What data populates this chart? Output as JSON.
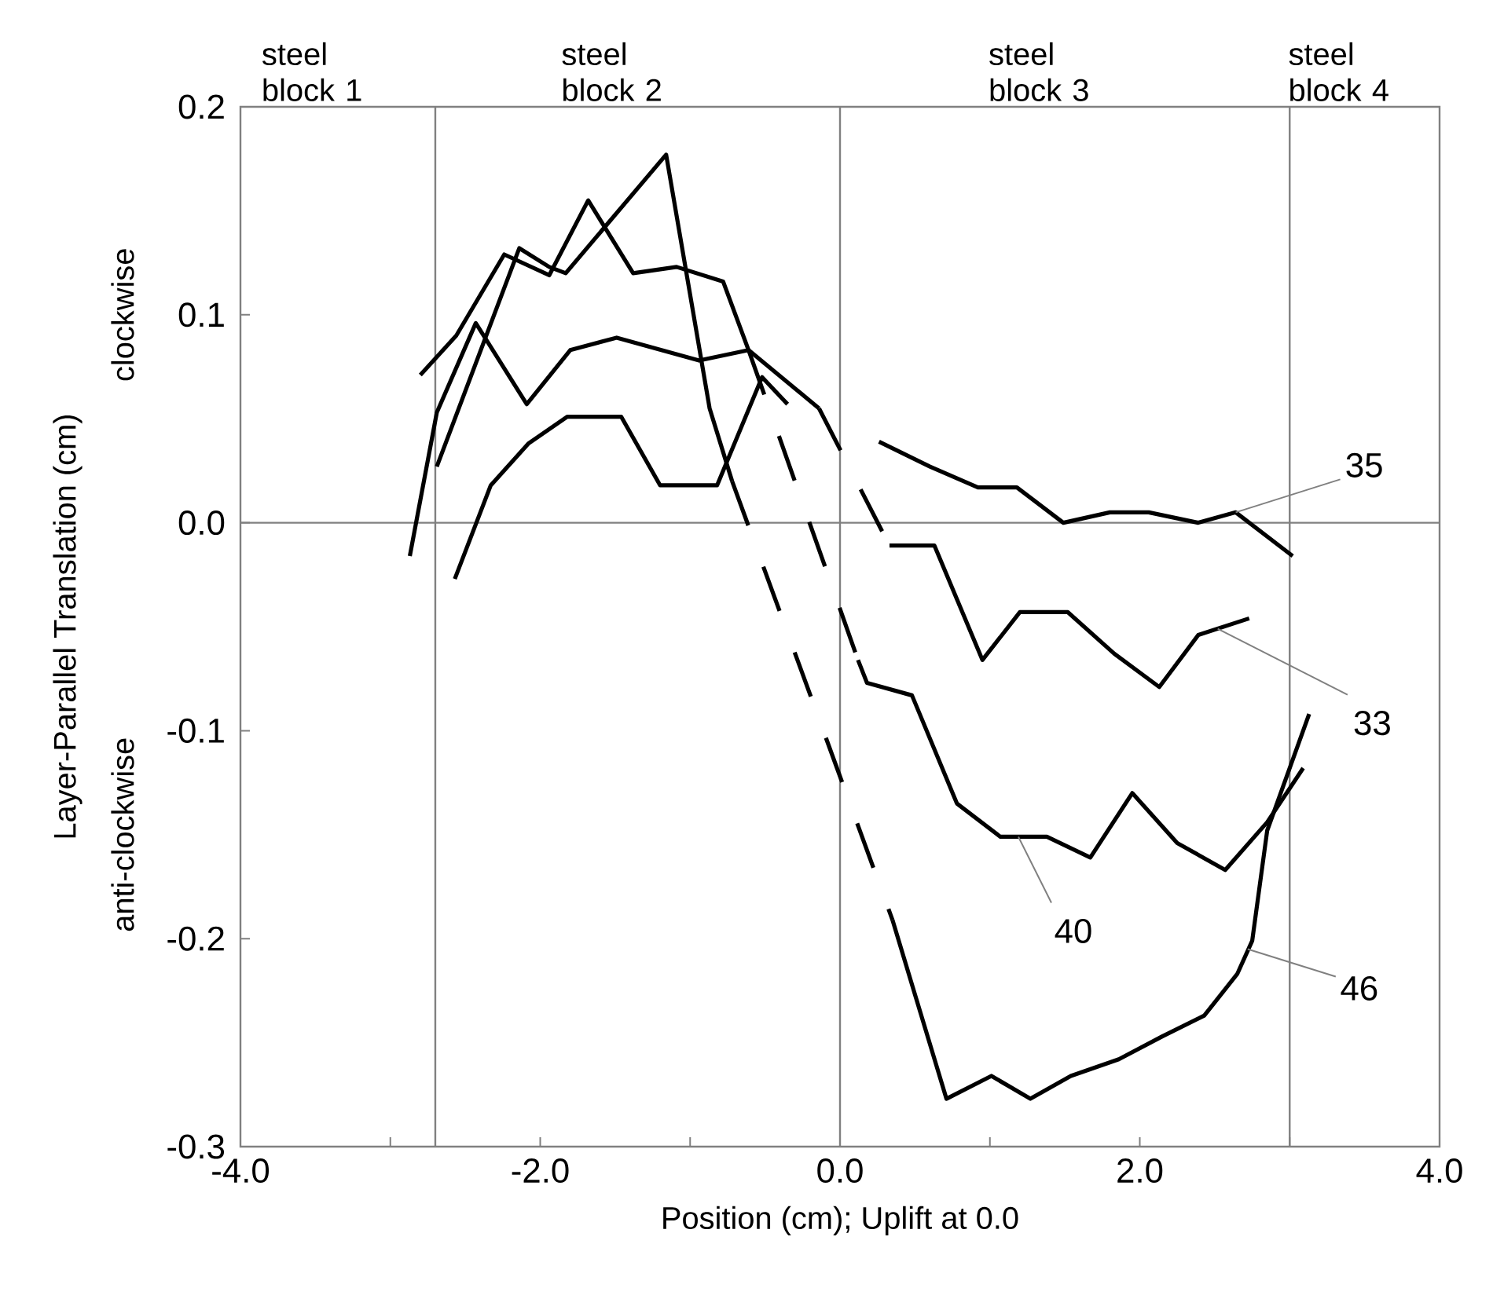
{
  "chart_data": {
    "type": "line",
    "xlabel": "Position (cm); Uplift at 0.0",
    "ylabel": "Layer-Parallel Translation (cm)",
    "xlim": [
      -4,
      4
    ],
    "ylim": [
      -0.3,
      0.2
    ],
    "xticks": [
      {
        "value": -4,
        "label": "-4.0"
      },
      {
        "value": -3,
        "label": null
      },
      {
        "value": -2,
        "label": "-2.0"
      },
      {
        "value": -1,
        "label": null
      },
      {
        "value": 0,
        "label": "0.0"
      },
      {
        "value": 1,
        "label": null
      },
      {
        "value": 2,
        "label": "2.0"
      },
      {
        "value": 3,
        "label": null
      },
      {
        "value": 4,
        "label": "4.0"
      }
    ],
    "yticks": [
      -0.3,
      -0.2,
      -0.1,
      {
        "value": 0,
        "label": "0.0"
      },
      0.1,
      0.2
    ],
    "grid": false,
    "marker": "none",
    "ref_lines": [
      {
        "axis": "x",
        "value": -2.7
      },
      {
        "axis": "x",
        "value": 0
      },
      {
        "axis": "x",
        "value": 3.0
      },
      {
        "axis": "y",
        "value": 0
      }
    ],
    "annotations": [
      "steel block 1",
      "steel block 2",
      "steel block 3",
      "steel block 4",
      "clockwise",
      "anti-clockwise",
      {
        "text": "35",
        "x": 2.64,
        "y": 0.005
      },
      {
        "text": "33",
        "x": 2.52,
        "y": -0.051
      },
      {
        "text": "40",
        "x": 1.19,
        "y": -0.151
      },
      {
        "text": "46",
        "x": 2.72,
        "y": -0.205
      }
    ],
    "series": [
      {
        "color": "#000000",
        "line_style": "solid",
        "x": [
          -2.8,
          -2.56,
          -2.24,
          -1.94,
          -1.68,
          -1.38,
          -1.09,
          -0.78,
          -0.61
        ],
        "values": [
          0.071,
          0.09,
          0.129,
          0.119,
          0.155,
          0.12,
          0.123,
          0.116,
          0.083
        ]
      },
      {
        "color": "#000000",
        "line_style": "dashed",
        "x": [
          -0.61,
          0.12
        ],
        "values": [
          0.083,
          -0.066
        ]
      },
      {
        "color": "#000000",
        "line_style": "solid",
        "x": [
          0.12,
          0.18,
          0.48,
          0.78,
          1.07,
          1.38,
          1.67,
          1.95,
          2.25,
          2.57,
          2.85,
          3.09
        ],
        "values": [
          -0.066,
          -0.077,
          -0.083,
          -0.135,
          -0.151,
          -0.151,
          -0.161,
          -0.13,
          -0.154,
          -0.167,
          -0.144,
          -0.118
        ]
      },
      {
        "color": "#000000",
        "line_style": "solid",
        "x": [
          -2.87,
          -2.69,
          -2.43,
          -2.09,
          -1.8,
          -1.49,
          -0.94,
          -0.61,
          -0.14
        ],
        "values": [
          -0.016,
          0.053,
          0.096,
          0.057,
          0.083,
          0.089,
          0.078,
          0.083,
          0.055
        ]
      },
      {
        "color": "#000000",
        "line_style": "dashed",
        "x": [
          -0.14,
          0.33
        ],
        "values": [
          0.055,
          -0.011
        ]
      },
      {
        "color": "#000000",
        "line_style": "solid",
        "x": [
          0.33,
          0.63,
          0.95,
          1.2,
          1.52,
          1.83,
          2.13,
          2.39,
          2.73
        ],
        "values": [
          -0.011,
          -0.011,
          -0.066,
          -0.043,
          -0.043,
          -0.063,
          -0.079,
          -0.054,
          -0.046
        ]
      },
      {
        "color": "#000000",
        "line_style": "solid",
        "x": [
          -2.69,
          -2.14,
          -1.94,
          -1.83,
          -1.16,
          -0.87,
          -0.72
        ],
        "values": [
          0.027,
          0.132,
          0.123,
          0.12,
          0.177,
          0.055,
          0.02
        ]
      },
      {
        "color": "#000000",
        "line_style": "dashed",
        "x": [
          -0.72,
          0.35
        ],
        "values": [
          0.02,
          -0.191
        ]
      },
      {
        "color": "#000000",
        "line_style": "solid",
        "x": [
          0.35,
          0.71,
          1.01,
          1.27,
          1.54,
          1.86,
          2.15,
          2.43,
          2.65,
          2.75,
          2.85,
          3.13
        ],
        "values": [
          -0.191,
          -0.277,
          -0.266,
          -0.277,
          -0.266,
          -0.258,
          -0.247,
          -0.237,
          -0.217,
          -0.201,
          -0.148,
          -0.092
        ]
      },
      {
        "color": "#000000",
        "line_style": "solid",
        "x": [
          -2.57,
          -2.33,
          -2.08,
          -1.82,
          -1.46,
          -1.2,
          -0.82,
          -0.52,
          -0.35
        ],
        "values": [
          -0.027,
          0.018,
          0.038,
          0.051,
          0.051,
          0.018,
          0.018,
          0.07,
          0.057
        ]
      },
      {
        "color": "#000000",
        "line_style": "solid",
        "x": [
          0.26,
          0.6,
          0.92,
          1.18,
          1.49,
          1.8,
          2.06,
          2.39,
          2.64,
          3.02
        ],
        "values": [
          0.039,
          0.027,
          0.017,
          0.017,
          0.0,
          0.005,
          0.005,
          0.0,
          0.005,
          -0.016
        ]
      }
    ]
  }
}
